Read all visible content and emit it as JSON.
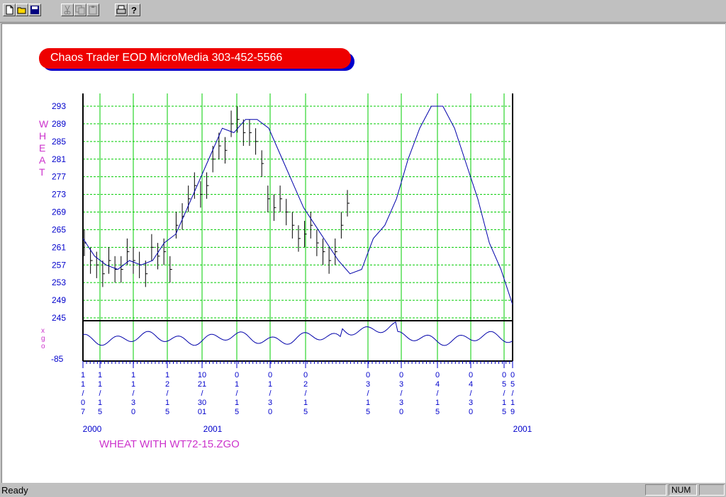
{
  "toolbar": {
    "buttons": [
      "new-file-icon",
      "open-folder-icon",
      "save-icon",
      "cut-icon",
      "copy-icon",
      "paste-icon",
      "print-icon",
      "help-icon"
    ]
  },
  "banner": {
    "title": "Chaos Trader EOD MicroMedia 303-452-5566"
  },
  "chart": {
    "price_label_vertical": "WHEAT",
    "osc_label_vertical": "XGO",
    "osc_tick_top": "-85",
    "caption": "WHEAT WITH WT72-15.ZGO",
    "colors": {
      "price_line": "#0000aa",
      "grid": "#00cc00",
      "label": "#cc33cc",
      "axis_text": "#0000cc"
    }
  },
  "chart_data": {
    "type": "line",
    "y_ticks": [
      "293",
      "289",
      "285",
      "281",
      "277",
      "273",
      "269",
      "265",
      "261",
      "257",
      "253",
      "249",
      "245"
    ],
    "ylim": [
      245,
      295
    ],
    "x_date_labels": [
      {
        "lines": [
          "1",
          "1",
          "/",
          "0",
          "7"
        ]
      },
      {
        "lines": [
          "1",
          "1",
          "/",
          "1",
          "5"
        ]
      },
      {
        "lines": [
          "1",
          "1",
          "/",
          "3",
          "0"
        ]
      },
      {
        "lines": [
          "1",
          "2",
          "/",
          "1",
          "5"
        ]
      },
      {
        "lines": [
          "10",
          "21",
          "/",
          "30",
          "01"
        ]
      },
      {
        "lines": [
          "0",
          "1",
          "/",
          "1",
          "5"
        ]
      },
      {
        "lines": [
          "0",
          "1",
          "/",
          "3",
          "0"
        ]
      },
      {
        "lines": [
          "0",
          "2",
          "/",
          "1",
          "5"
        ]
      },
      {
        "lines": [
          "0",
          "3",
          "/",
          "1",
          "5"
        ]
      },
      {
        "lines": [
          "0",
          "3",
          "/",
          "3",
          "0"
        ]
      },
      {
        "lines": [
          "0",
          "4",
          "/",
          "1",
          "5"
        ]
      },
      {
        "lines": [
          "0",
          "4",
          "/",
          "3",
          "0"
        ]
      },
      {
        "lines": [
          "0",
          "5",
          "/",
          "1",
          "5"
        ]
      },
      {
        "lines": [
          "0",
          "5",
          "/",
          "1",
          "9"
        ]
      }
    ],
    "year_labels": [
      "2000",
      "2001",
      "2001"
    ],
    "forecast_line": [
      263,
      259,
      257,
      256,
      258,
      257,
      258,
      262,
      264,
      270,
      276,
      282,
      288,
      287,
      290,
      290,
      288,
      282,
      276,
      270,
      266,
      262,
      258,
      255,
      256,
      263,
      266,
      272,
      281,
      288,
      293,
      293,
      288,
      280,
      272,
      262,
      256,
      248
    ],
    "price_bars": [
      262,
      258,
      257,
      255,
      258,
      256,
      256,
      260,
      258,
      257,
      255,
      261,
      259,
      260,
      256,
      266,
      268,
      272,
      275,
      273,
      275,
      281,
      284,
      283,
      289,
      290,
      287,
      287,
      285,
      280,
      272,
      270,
      272,
      269,
      266,
      263,
      264,
      266,
      262,
      260,
      258,
      260,
      266,
      271
    ]
  },
  "status": {
    "text": "Ready",
    "num": "NUM"
  }
}
